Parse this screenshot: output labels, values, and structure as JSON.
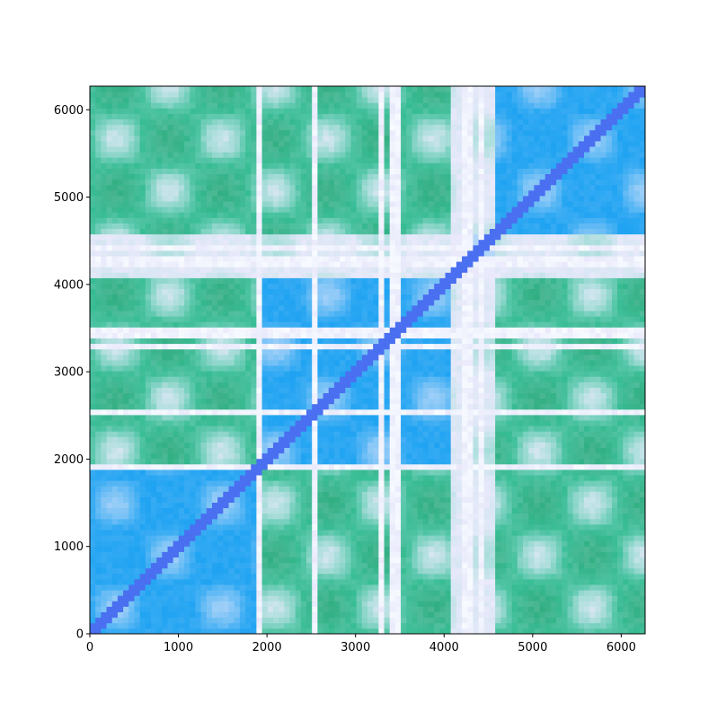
{
  "chart_data": {
    "type": "heatmap",
    "title": "",
    "xlabel": "",
    "ylabel": "",
    "xlim": [
      0,
      6270
    ],
    "ylim": [
      0,
      6270
    ],
    "x_ticks": [
      0,
      1000,
      2000,
      3000,
      4000,
      5000,
      6000
    ],
    "y_ticks": [
      0,
      1000,
      2000,
      3000,
      4000,
      5000,
      6000
    ],
    "x_tick_labels": [
      "0",
      "1000",
      "2000",
      "3000",
      "4000",
      "5000",
      "6000"
    ],
    "y_tick_labels": [
      "0",
      "1000",
      "2000",
      "3000",
      "4000",
      "5000",
      "6000"
    ],
    "grid": false,
    "symmetric": true,
    "colors": {
      "diagonal": "#4a6ff0",
      "high": "#1fa3f2",
      "medium": "#3ccba6",
      "medium_dark": "#2a9b6a",
      "low": "#e9e9fb",
      "very_low": "#f7fbff",
      "frame": "#000000"
    },
    "blocks": [
      {
        "start": 0,
        "end": 1850,
        "level": "high"
      },
      {
        "start": 1850,
        "end": 4050,
        "level": "high"
      },
      {
        "start": 4050,
        "end": 4600,
        "level": "low"
      },
      {
        "start": 4600,
        "end": 6270,
        "level": "high"
      }
    ],
    "off_block_levels": [
      {
        "rows": [
          0,
          1850
        ],
        "cols": [
          1850,
          4050
        ],
        "level": "medium"
      },
      {
        "rows": [
          0,
          1850
        ],
        "cols": [
          4050,
          4600
        ],
        "level": "low"
      },
      {
        "rows": [
          0,
          1850
        ],
        "cols": [
          4600,
          6270
        ],
        "level": "medium"
      },
      {
        "rows": [
          1850,
          4050
        ],
        "cols": [
          4050,
          4600
        ],
        "level": "low"
      },
      {
        "rows": [
          1850,
          4050
        ],
        "cols": [
          4600,
          6270
        ],
        "level": "medium"
      },
      {
        "rows": [
          4050,
          4600
        ],
        "cols": [
          4600,
          6270
        ],
        "level": "low"
      }
    ],
    "pale_bands": [
      {
        "start": 1870,
        "end": 1950
      },
      {
        "start": 2480,
        "end": 2540
      },
      {
        "start": 3230,
        "end": 3320
      },
      {
        "start": 3370,
        "end": 3480
      },
      {
        "start": 4180,
        "end": 4300
      },
      {
        "start": 4380,
        "end": 4480
      }
    ]
  }
}
